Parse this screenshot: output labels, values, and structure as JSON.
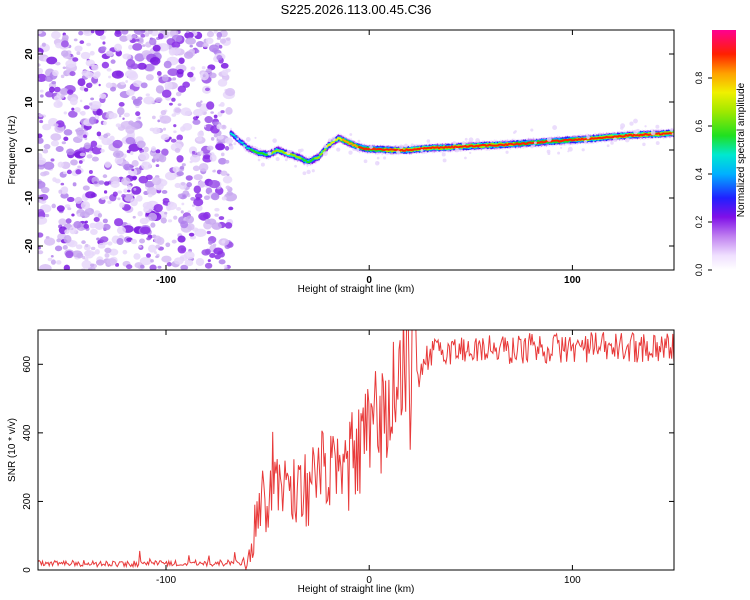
{
  "figure": {
    "title": "S225.2026.113.00.45.C36"
  },
  "chart_data": [
    {
      "type": "heatmap",
      "title": "S225.2026.113.00.45.C36",
      "xlabel": "Height of straight line (km)",
      "ylabel": "Frequency (Hz)",
      "xlim": [
        -163,
        150
      ],
      "ylim": [
        -25,
        25
      ],
      "xticks": [
        -100,
        0,
        100
      ],
      "yticks": [
        -20,
        -10,
        0,
        10,
        20
      ],
      "noise_region_x": [
        -163,
        -68
      ],
      "ridge": {
        "x": [
          -68,
          -64,
          -60,
          -55,
          -50,
          -45,
          -40,
          -35,
          -30,
          -25,
          -20,
          -15,
          -10,
          -5,
          0,
          10,
          20,
          30,
          40,
          50,
          60,
          70,
          80,
          90,
          100,
          110,
          120,
          130,
          140,
          150
        ],
        "y": [
          3.5,
          2,
          0.5,
          -0.5,
          -1,
          0,
          -0.8,
          -1.5,
          -2.5,
          -1.5,
          1,
          2.5,
          1.5,
          0.5,
          0.2,
          0,
          0,
          0.4,
          0.6,
          0.8,
          1.0,
          1.2,
          1.5,
          1.8,
          2.1,
          2.4,
          2.8,
          3.1,
          3.3,
          3.5
        ],
        "amplitude": [
          0.5,
          0.45,
          0.55,
          0.6,
          0.65,
          0.7,
          0.75,
          0.7,
          0.6,
          0.7,
          0.75,
          0.8,
          0.85,
          0.9,
          0.92,
          0.95,
          0.96,
          0.97,
          0.98,
          0.99,
          0.97,
          0.95,
          0.9,
          0.92,
          0.94,
          0.96,
          0.97,
          0.98,
          0.99,
          0.99
        ]
      },
      "colorbar": {
        "label": "Normalized spectral amplitude",
        "range": [
          0.0,
          1.0
        ],
        "ticks": [
          "0.0",
          "0.2",
          "0.4",
          "0.6",
          "0.8"
        ],
        "tick_values": [
          0.0,
          0.2,
          0.4,
          0.6,
          0.8
        ]
      }
    },
    {
      "type": "line",
      "xlabel": "Height of straight line (km)",
      "ylabel": "SNR (10 * v/v)",
      "xlim": [
        -163,
        150
      ],
      "ylim": [
        0,
        700
      ],
      "xticks": [
        -100,
        0,
        100
      ],
      "yticks": [
        0,
        200,
        400,
        600
      ],
      "series": [
        {
          "name": "SNR",
          "color": "#e83a3a",
          "x": [
            -163,
            -150,
            -120,
            -90,
            -70,
            -62,
            -58,
            -56,
            -54,
            -50,
            -48,
            -45,
            -40,
            -35,
            -30,
            -25,
            -20,
            -15,
            -10,
            -5,
            0,
            5,
            10,
            15,
            20,
            25,
            30,
            40,
            50,
            60,
            70,
            80,
            90,
            100,
            110,
            120,
            130,
            140,
            150
          ],
          "y": [
            20,
            20,
            18,
            20,
            20,
            22,
            60,
            160,
            200,
            220,
            280,
            260,
            250,
            235,
            240,
            270,
            300,
            260,
            310,
            340,
            390,
            430,
            480,
            540,
            580,
            600,
            630,
            640,
            645,
            645,
            640,
            650,
            645,
            648,
            650,
            648,
            650,
            652,
            650
          ]
        }
      ]
    }
  ]
}
